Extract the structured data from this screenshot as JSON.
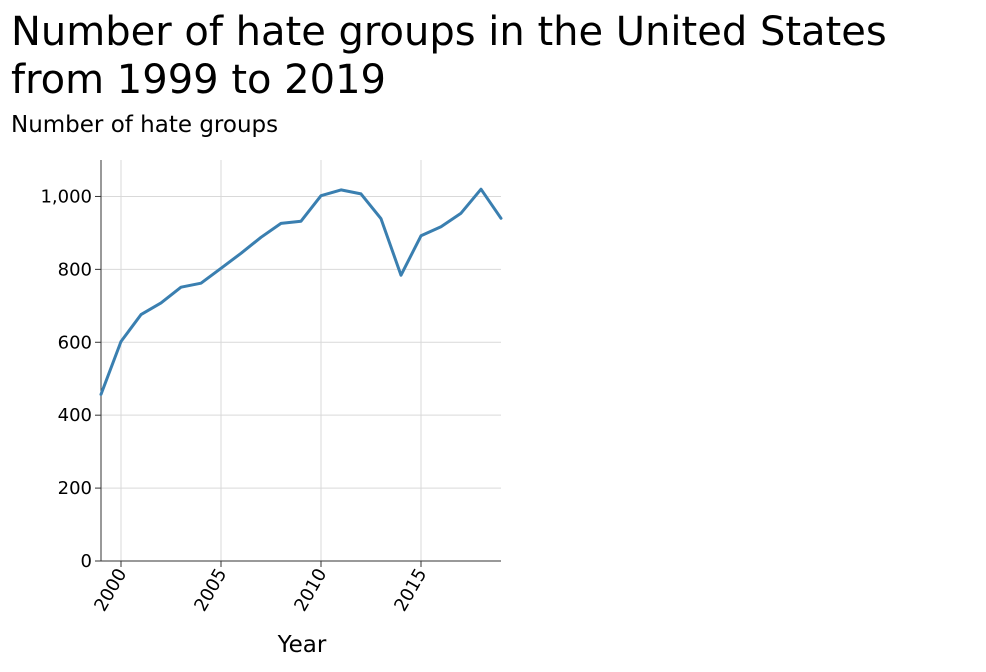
{
  "chart_data": {
    "type": "line",
    "title": "Number of hate groups in the United States from 1999 to 2019",
    "xlabel": "Year",
    "ylabel": "Number of hate groups",
    "xlim": [
      1999,
      2019
    ],
    "ylim": [
      0,
      1100
    ],
    "x_ticks": [
      2000,
      2005,
      2010,
      2015
    ],
    "x_tick_labels": [
      "2000",
      "2005",
      "2010",
      "2015"
    ],
    "y_ticks": [
      0,
      200,
      400,
      600,
      800,
      1000
    ],
    "y_tick_labels": [
      "0",
      "200",
      "400",
      "600",
      "800",
      "1,000"
    ],
    "grid": true,
    "legend": "none",
    "series": [
      {
        "color": "#3a7fb0",
        "x": [
          1999,
          2000,
          2001,
          2002,
          2003,
          2004,
          2005,
          2006,
          2007,
          2008,
          2009,
          2010,
          2011,
          2012,
          2013,
          2014,
          2015,
          2016,
          2017,
          2018,
          2019
        ],
        "values": [
          457,
          602,
          676,
          708,
          751,
          762,
          803,
          844,
          888,
          926,
          932,
          1002,
          1018,
          1007,
          939,
          784,
          892,
          917,
          954,
          1020,
          940
        ]
      }
    ]
  }
}
